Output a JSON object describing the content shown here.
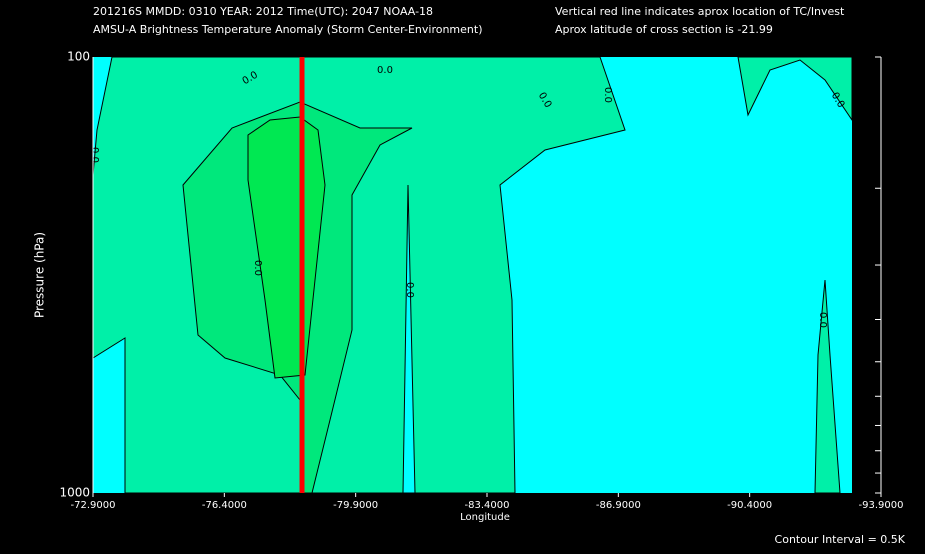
{
  "chart_data": {
    "type": "contour",
    "title_lines": [
      "201216S  MMDD: 0310 YEAR: 2012 Time(UTC): 2047 NOAA-18",
      "AMSU-A Brightness Temperature Anomaly (Storm Center-Environment)"
    ],
    "notes": [
      "Vertical red line indicates aprox location of TC/Invest",
      "Aprox latitude of cross section is -21.99"
    ],
    "xlabel": "Longitude",
    "ylabel": "Pressure (hPa)",
    "footer": "Contour Interval = 0.5K",
    "xlim": [
      -72.9,
      -93.9
    ],
    "xticks": [
      {
        "value": -72.9,
        "label": "-72.9000"
      },
      {
        "value": -76.4,
        "label": "-76.4000"
      },
      {
        "value": -79.9,
        "label": "-79.9000"
      },
      {
        "value": -83.4,
        "label": "-83.4000"
      },
      {
        "value": -86.9,
        "label": "-86.9000"
      },
      {
        "value": -90.4,
        "label": "-90.4000"
      },
      {
        "value": -93.9,
        "label": "-93.9000"
      }
    ],
    "ylim": [
      1000,
      100
    ],
    "yscale": "log",
    "yticks": [
      100,
      1000
    ],
    "yminorticks": [
      200,
      300,
      400,
      500,
      600,
      700,
      800,
      900
    ],
    "tc_longitude": -78.47,
    "tc_color": "#ff0000",
    "colors": [
      "#00ffff",
      "#00f0a8",
      "#00e87c",
      "#00e852"
    ],
    "contour_labels": [
      "0.0",
      "0.0",
      "0.0",
      "0.0",
      "0.0",
      "0.0",
      "0.0",
      "0.0",
      "0.0"
    ]
  }
}
